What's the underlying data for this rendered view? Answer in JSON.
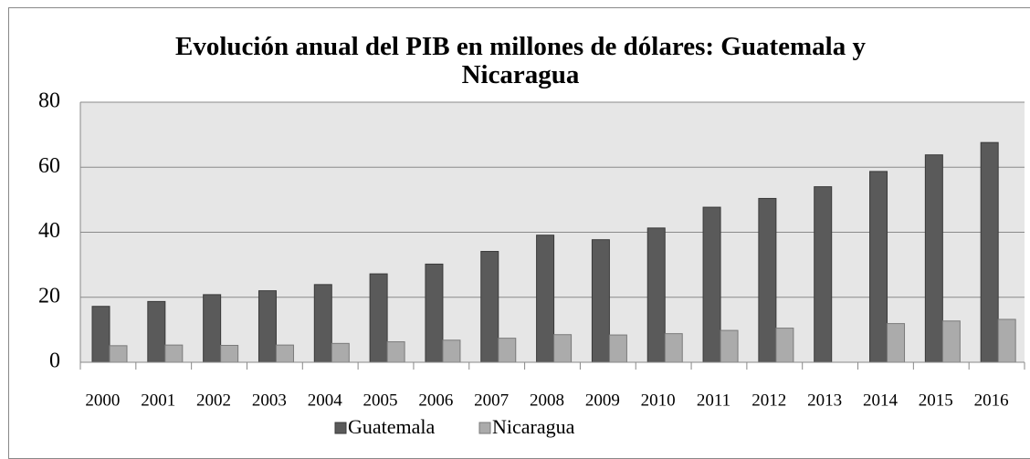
{
  "chart_data": {
    "type": "bar",
    "title": "Evolución anual del PIB en millones de dólares: Guatemala y Nicaragua",
    "categories": [
      "2000",
      "2001",
      "2002",
      "2003",
      "2004",
      "2005",
      "2006",
      "2007",
      "2008",
      "2009",
      "2010",
      "2011",
      "2012",
      "2013",
      "2014",
      "2015",
      "2016"
    ],
    "series": [
      {
        "name": "Guatemala",
        "color": "#5a5a5a",
        "values": [
          17.2,
          18.7,
          20.8,
          22,
          23.9,
          27.2,
          30.2,
          34.1,
          39.1,
          37.7,
          41.3,
          47.7,
          50.4,
          54,
          58.7,
          63.8,
          67.6
        ]
      },
      {
        "name": "Nicaragua",
        "color": "#ababab",
        "values": [
          5.1,
          5.3,
          5.2,
          5.3,
          5.8,
          6.3,
          6.8,
          7.4,
          8.5,
          8.4,
          8.8,
          9.8,
          10.5,
          null,
          11.9,
          12.7,
          13.2
        ]
      }
    ],
    "ylim": [
      0,
      80
    ],
    "yticks": [
      0,
      20,
      40,
      60,
      80
    ],
    "grid": true,
    "legend": "bottom"
  }
}
